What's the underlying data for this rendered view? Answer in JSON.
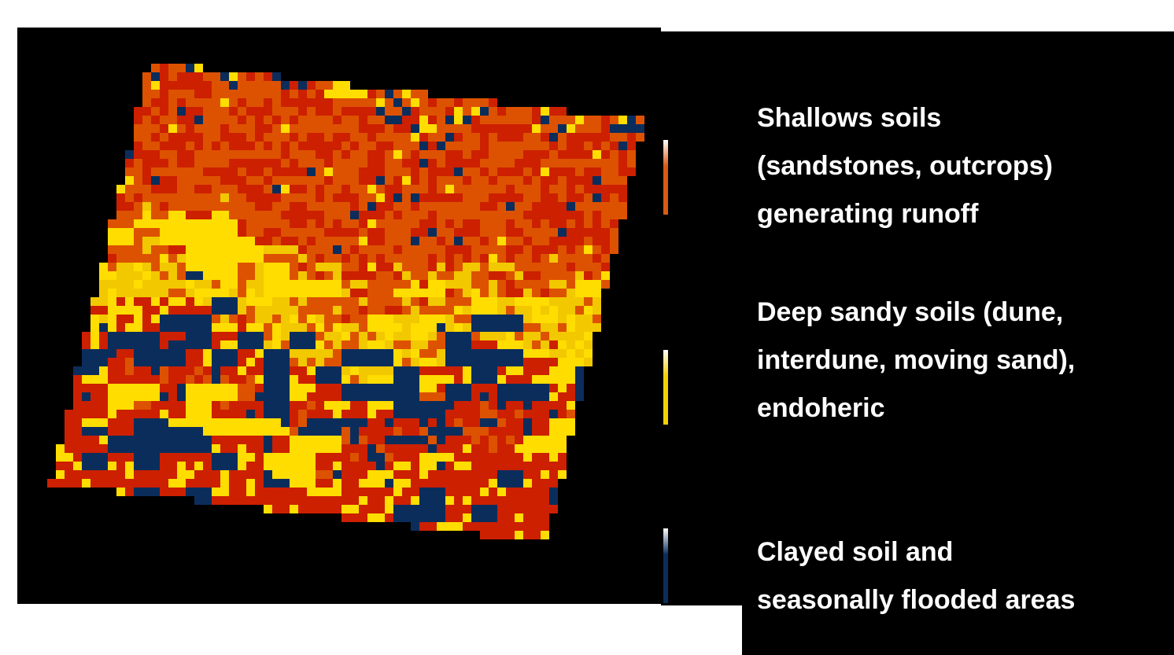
{
  "legend": [
    {
      "lines": [
        "Shallows soils",
        "(sandstones,  outcrops)",
        "generating  runoff"
      ],
      "color": "#d95a14"
    },
    {
      "lines": [
        "Deep sandy soils (dune,",
        "interdune, moving sand),",
        "endoheric"
      ],
      "color": "#f5d000"
    },
    {
      "lines": [
        "Clayed soil and",
        "seasonally flooded areas"
      ],
      "color": "#0b2d5c"
    }
  ]
}
